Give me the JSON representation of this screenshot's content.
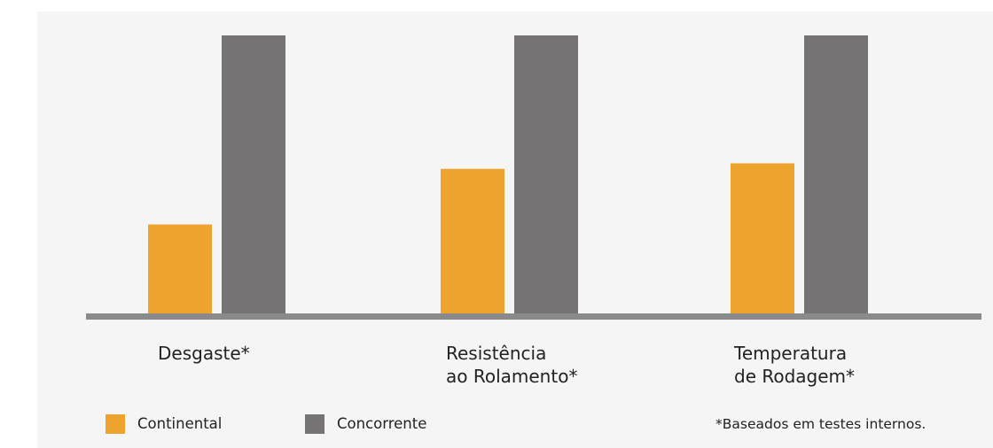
{
  "colors": {
    "panel_bg": "#f5f5f5",
    "series_1": "#eea32e",
    "series_2": "#757374",
    "baseline": "#8a8a8a"
  },
  "chart_data": {
    "type": "bar",
    "categories": [
      "Desgaste*",
      "Resistência\nao Rolamento*",
      "Temperatura\nde Rodagem*"
    ],
    "series": [
      {
        "name": "Continental",
        "values": [
          32,
          52,
          54
        ]
      },
      {
        "name": "Concorrente",
        "values": [
          100,
          100,
          100
        ]
      }
    ],
    "ylim": [
      0,
      100
    ],
    "title": "",
    "xlabel": "",
    "ylabel": "",
    "grid": false,
    "legend": "bottom-left"
  },
  "footnote": "*Baseados em testes internos."
}
